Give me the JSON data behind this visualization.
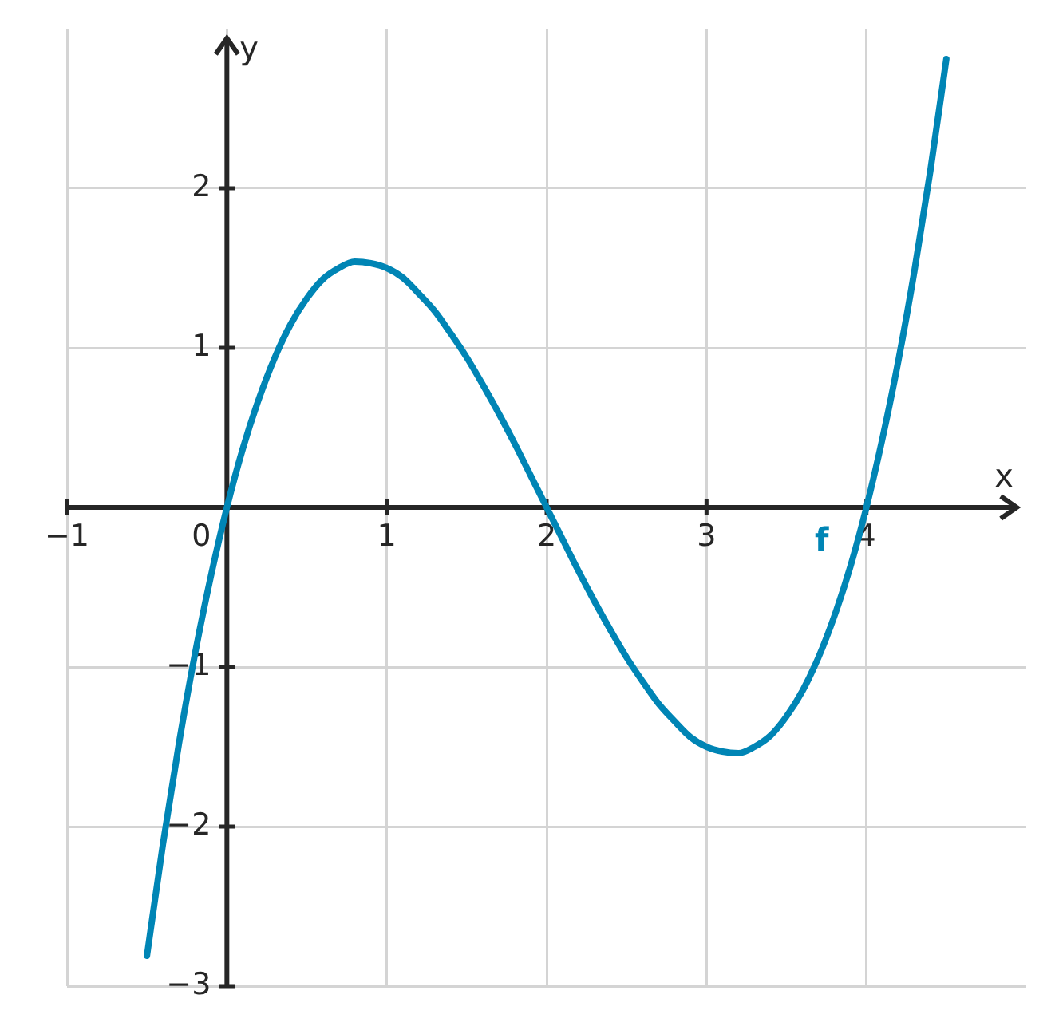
{
  "chart_data": {
    "type": "line",
    "xlabel": "x",
    "ylabel": "y",
    "x": [
      -0.5,
      -0.4,
      -0.3,
      -0.2,
      -0.1,
      0,
      0.1,
      0.2,
      0.3,
      0.4,
      0.5,
      0.6,
      0.7,
      0.8,
      0.9,
      1,
      1.1,
      1.2,
      1.3,
      1.4,
      1.5,
      1.6,
      1.7,
      1.8,
      1.9,
      2,
      2.1,
      2.2,
      2.3,
      2.4,
      2.5,
      2.6,
      2.7,
      2.8,
      2.9,
      3,
      3.1,
      3.2,
      3.3,
      3.4,
      3.5,
      3.6,
      3.7,
      3.8,
      3.9,
      4,
      4.1,
      4.2,
      4.3,
      4.4,
      4.5
    ],
    "series": [
      {
        "name": "f",
        "color": "#0085b5",
        "values": [
          -2.81,
          -2.11,
          -1.48,
          -0.92,
          -0.43,
          0,
          0.37,
          0.68,
          0.94,
          1.15,
          1.31,
          1.43,
          1.5,
          1.54,
          1.53,
          1.5,
          1.44,
          1.34,
          1.23,
          1.09,
          0.94,
          0.77,
          0.59,
          0.4,
          0.2,
          0,
          -0.2,
          -0.4,
          -0.59,
          -0.77,
          -0.94,
          -1.09,
          -1.23,
          -1.34,
          -1.44,
          -1.5,
          -1.53,
          -1.54,
          -1.5,
          -1.43,
          -1.31,
          -1.15,
          -0.94,
          -0.68,
          -0.37,
          0,
          0.43,
          0.92,
          1.48,
          2.11,
          2.81
        ]
      }
    ],
    "xlim": [
      -1,
      5
    ],
    "ylim": [
      -3,
      3
    ],
    "xticks": [
      -1,
      0,
      1,
      2,
      3,
      4
    ],
    "yticks": [
      -3,
      -2,
      -1,
      1,
      2
    ],
    "grid": true
  }
}
